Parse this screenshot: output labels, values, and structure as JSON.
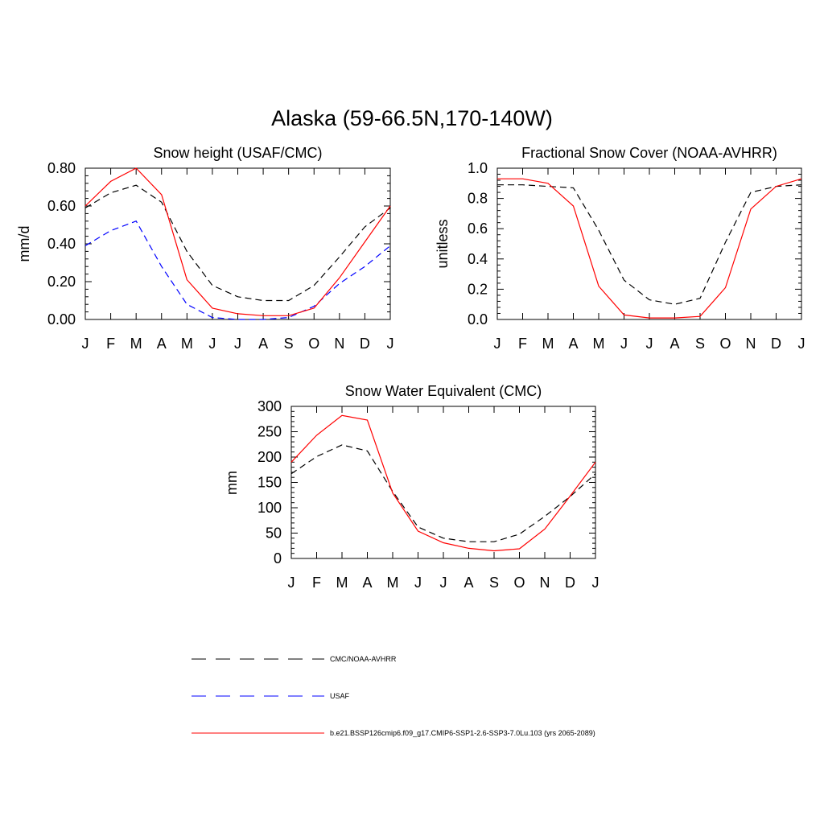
{
  "figure": {
    "title": "Alaska (59-66.5N,170-140W)"
  },
  "colors": {
    "cmc": "#000000",
    "usaf": "#0000ff",
    "model": "#ff0000"
  },
  "legend": {
    "entries": [
      {
        "key": "cmc",
        "label": "CMC/NOAA-AVHRR",
        "dash": "dashed",
        "color": "#000000"
      },
      {
        "key": "usaf",
        "label": "USAF",
        "dash": "dashed",
        "color": "#0000ff"
      },
      {
        "key": "model",
        "label": "b.e21.BSSP126cmip6.f09_g17.CMIP6-SSP1-2.6-SSP3-7.0Lu.103 (yrs 2065-2089)",
        "dash": "solid",
        "color": "#ff0000"
      }
    ]
  },
  "chart_data": [
    {
      "id": "snow-height",
      "type": "line",
      "title": "Snow height (USAF/CMC)",
      "ylabel": "mm/d",
      "categories": [
        "J",
        "F",
        "M",
        "A",
        "M",
        "J",
        "J",
        "A",
        "S",
        "O",
        "N",
        "D",
        "J"
      ],
      "ylim": [
        0,
        0.8
      ],
      "yticks": [
        0,
        0.2,
        0.4,
        0.6,
        0.8
      ],
      "yticklabels": [
        "0.00",
        "0.20",
        "0.40",
        "0.60",
        "0.80"
      ],
      "series": [
        {
          "key": "cmc",
          "values": [
            0.59,
            0.67,
            0.71,
            0.62,
            0.36,
            0.18,
            0.12,
            0.1,
            0.1,
            0.18,
            0.33,
            0.49,
            0.59
          ]
        },
        {
          "key": "usaf",
          "values": [
            0.39,
            0.47,
            0.52,
            0.28,
            0.08,
            0.01,
            0.0,
            0.0,
            0.01,
            0.07,
            0.19,
            0.28,
            0.39
          ]
        },
        {
          "key": "model",
          "values": [
            0.6,
            0.73,
            0.8,
            0.66,
            0.21,
            0.06,
            0.03,
            0.02,
            0.02,
            0.06,
            0.22,
            0.41,
            0.6
          ]
        }
      ]
    },
    {
      "id": "snow-cover",
      "type": "line",
      "title": "Fractional Snow Cover (NOAA-AVHRR)",
      "ylabel": "unitless",
      "categories": [
        "J",
        "F",
        "M",
        "A",
        "M",
        "J",
        "J",
        "A",
        "S",
        "O",
        "N",
        "D",
        "J"
      ],
      "ylim": [
        0,
        1.0
      ],
      "yticks": [
        0,
        0.2,
        0.4,
        0.6,
        0.8,
        1.0
      ],
      "yticklabels": [
        "0.0",
        "0.2",
        "0.4",
        "0.6",
        "0.8",
        "1.0"
      ],
      "series": [
        {
          "key": "cmc",
          "values": [
            0.89,
            0.89,
            0.88,
            0.87,
            0.59,
            0.26,
            0.13,
            0.1,
            0.14,
            0.51,
            0.84,
            0.88,
            0.89
          ]
        },
        {
          "key": "model",
          "values": [
            0.93,
            0.93,
            0.9,
            0.75,
            0.22,
            0.03,
            0.01,
            0.01,
            0.02,
            0.21,
            0.73,
            0.88,
            0.93
          ]
        }
      ]
    },
    {
      "id": "swe",
      "type": "line",
      "title": "Snow Water Equivalent (CMC)",
      "ylabel": "mm",
      "categories": [
        "J",
        "F",
        "M",
        "A",
        "M",
        "J",
        "J",
        "A",
        "S",
        "O",
        "N",
        "D",
        "J"
      ],
      "ylim": [
        0,
        300
      ],
      "yticks": [
        0,
        50,
        100,
        150,
        200,
        250,
        300
      ],
      "yticklabels": [
        "0",
        "50",
        "100",
        "150",
        "200",
        "250",
        "300"
      ],
      "series": [
        {
          "key": "cmc",
          "values": [
            167,
            201,
            224,
            212,
            132,
            62,
            40,
            33,
            33,
            48,
            83,
            122,
            167
          ]
        },
        {
          "key": "model",
          "values": [
            190,
            243,
            282,
            273,
            129,
            54,
            31,
            20,
            15,
            19,
            58,
            123,
            190
          ]
        }
      ]
    }
  ]
}
